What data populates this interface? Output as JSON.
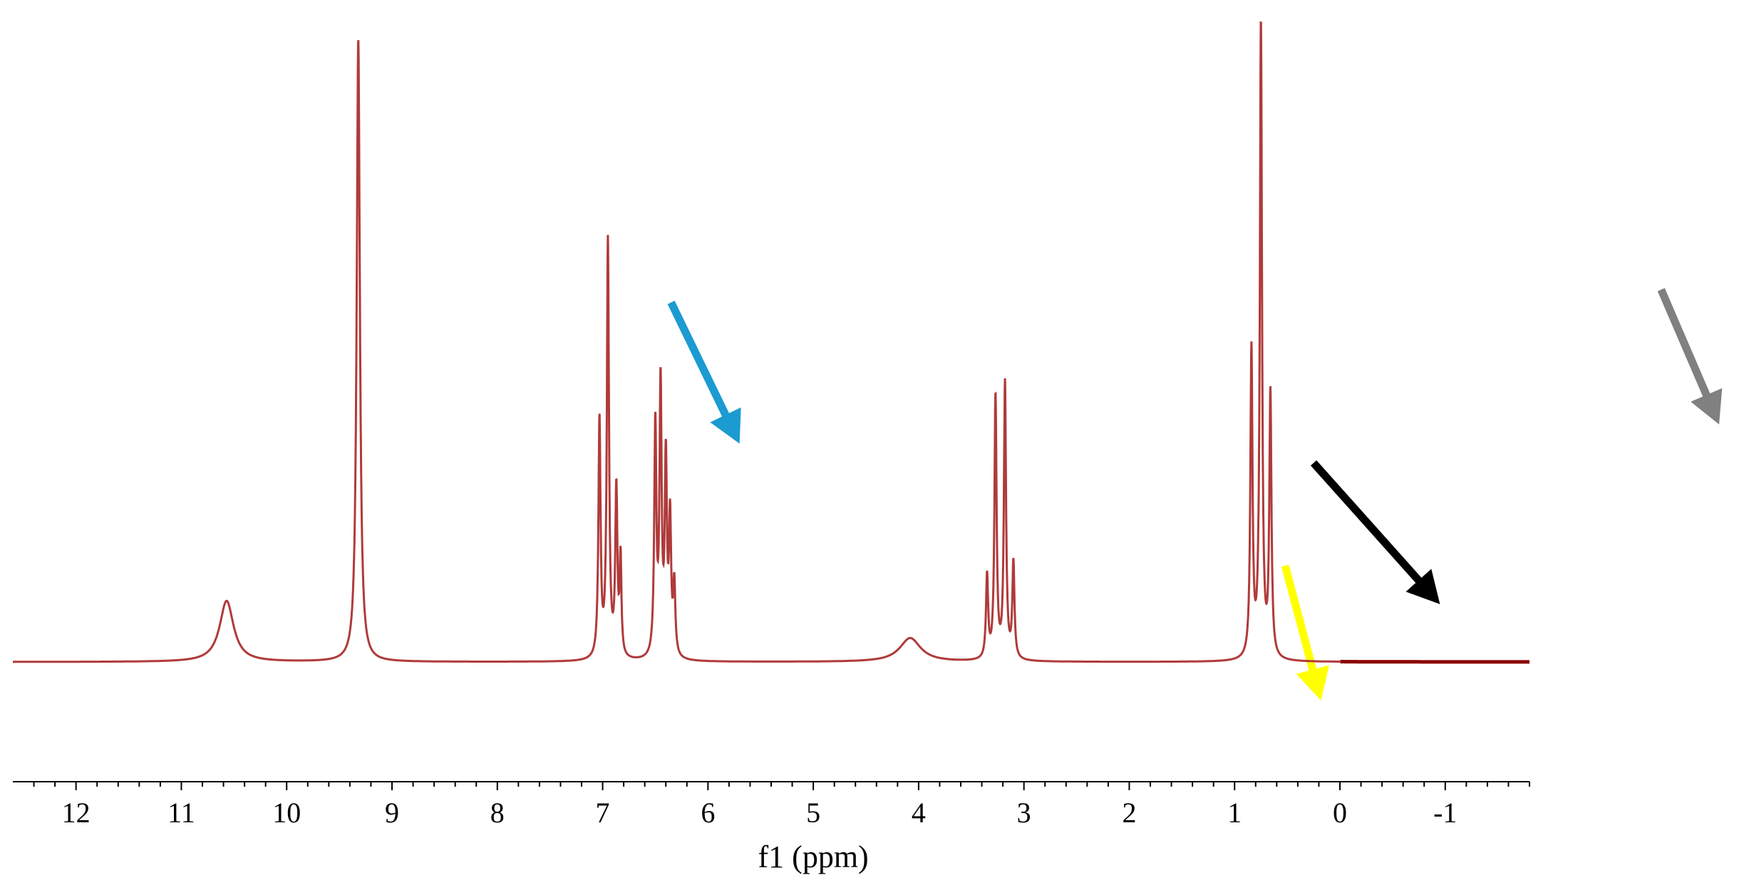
{
  "chart_data": {
    "type": "line",
    "title": "",
    "xlabel": "f1 (ppm)",
    "ylabel": "",
    "x_reversed": true,
    "xlim": [
      12.6,
      -1.8
    ],
    "ylim": [
      -0.2,
      1.03
    ],
    "grid": false,
    "legend": "none",
    "x_ticks": [
      "12",
      "11",
      "10",
      "9",
      "8",
      "7",
      "6",
      "5",
      "4",
      "3",
      "2",
      "1",
      "0",
      "-1"
    ],
    "line_color": "#b03a3a",
    "flat_segment_color": "#8b0000",
    "peaks": [
      {
        "ppm": 10.57,
        "height": 0.095,
        "width": 0.08
      },
      {
        "ppm": 9.32,
        "height": 0.97,
        "width": 0.018
      },
      {
        "ppm": 7.03,
        "height": 0.37,
        "width": 0.012
      },
      {
        "ppm": 6.95,
        "height": 0.65,
        "width": 0.012
      },
      {
        "ppm": 6.87,
        "height": 0.26,
        "width": 0.012
      },
      {
        "ppm": 6.83,
        "height": 0.15,
        "width": 0.01
      },
      {
        "ppm": 6.5,
        "height": 0.36,
        "width": 0.012
      },
      {
        "ppm": 6.45,
        "height": 0.42,
        "width": 0.012
      },
      {
        "ppm": 6.4,
        "height": 0.3,
        "width": 0.012
      },
      {
        "ppm": 6.36,
        "height": 0.21,
        "width": 0.012
      },
      {
        "ppm": 6.32,
        "height": 0.11,
        "width": 0.012
      },
      {
        "ppm": 4.08,
        "height": 0.037,
        "width": 0.12
      },
      {
        "ppm": 3.35,
        "height": 0.13,
        "width": 0.012
      },
      {
        "ppm": 3.27,
        "height": 0.41,
        "width": 0.012
      },
      {
        "ppm": 3.18,
        "height": 0.43,
        "width": 0.012
      },
      {
        "ppm": 3.1,
        "height": 0.15,
        "width": 0.012
      },
      {
        "ppm": 0.84,
        "height": 0.48,
        "width": 0.012
      },
      {
        "ppm": 0.75,
        "height": 0.99,
        "width": 0.012
      },
      {
        "ppm": 0.66,
        "height": 0.41,
        "width": 0.012
      }
    ],
    "annotations": [
      {
        "type": "arrow",
        "color": "#1b9bd1",
        "from": [
          6.35,
          0.56
        ],
        "to": [
          5.7,
          0.34
        ]
      },
      {
        "type": "arrow",
        "color": "#000000",
        "from": [
          0.25,
          0.31
        ],
        "to": [
          -0.95,
          0.09
        ]
      },
      {
        "type": "arrow",
        "color": "#ffff00",
        "from": [
          0.52,
          0.15
        ],
        "to": [
          0.18,
          -0.06
        ]
      },
      {
        "type": "arrow",
        "color": "#808080",
        "from": [
          -3.05,
          0.58
        ],
        "to": [
          -3.6,
          0.37
        ]
      }
    ]
  }
}
